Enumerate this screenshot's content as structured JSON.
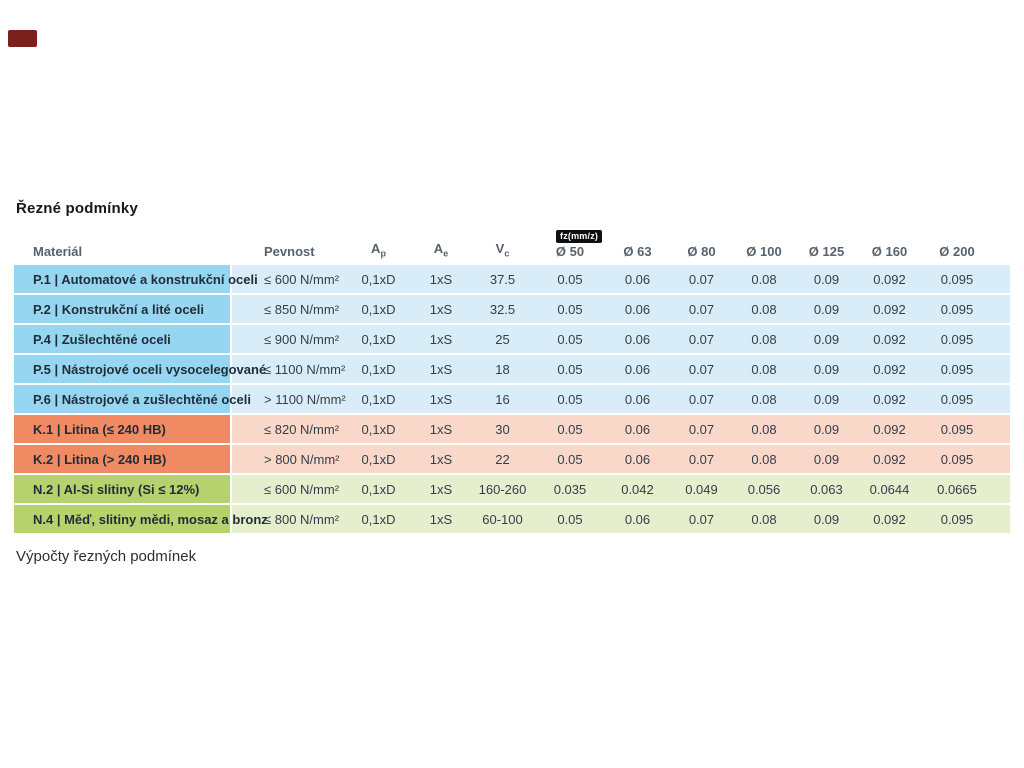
{
  "page": {
    "title": "Řezné podmínky",
    "section_footer": "Výpočty řezných podmínek"
  },
  "colors": {
    "group_p_dark": "#96d6f0",
    "group_p_light": "#d8edf8",
    "group_k_dark": "#f08a63",
    "group_k_light": "#fad8c9",
    "group_n_dark": "#b5d26d",
    "group_n_light": "#e5efcd",
    "badge_bg": "#0f0f10",
    "badge_text": "#ffffff",
    "recording_badge": "#7d1f1a"
  },
  "table": {
    "headers": {
      "material": "Materiál",
      "pevnost": "Pevnost",
      "ap": {
        "base": "A",
        "sub": "p"
      },
      "ae": {
        "base": "A",
        "sub": "e"
      },
      "vc": {
        "base": "V",
        "sub": "c"
      },
      "fz_unit_badge": "fz(mm/z)",
      "diameters": [
        "Ø 50",
        "Ø 63",
        "Ø 80",
        "Ø 100",
        "Ø 125",
        "Ø 160",
        "Ø 200"
      ]
    },
    "rows": [
      {
        "group": "P",
        "name": "P.1 | Automatové a konstrukční oceli",
        "pevnost": "≤ 600 N/mm²",
        "ap": "0,1xD",
        "ae": "1xS",
        "vc": "37.5",
        "fz": [
          "0.05",
          "0.06",
          "0.07",
          "0.08",
          "0.09",
          "0.092",
          "0.095"
        ]
      },
      {
        "group": "P",
        "name": "P.2 | Konstrukční a lité oceli",
        "pevnost": "≤ 850 N/mm²",
        "ap": "0,1xD",
        "ae": "1xS",
        "vc": "32.5",
        "fz": [
          "0.05",
          "0.06",
          "0.07",
          "0.08",
          "0.09",
          "0.092",
          "0.095"
        ]
      },
      {
        "group": "P",
        "name": "P.4 | Zušlechtěné oceli",
        "pevnost": "≤ 900 N/mm²",
        "ap": "0,1xD",
        "ae": "1xS",
        "vc": "25",
        "fz": [
          "0.05",
          "0.06",
          "0.07",
          "0.08",
          "0.09",
          "0.092",
          "0.095"
        ]
      },
      {
        "group": "P",
        "name": "P.5 | Nástrojové oceli vysocelegované",
        "pevnost": "≤ 1100 N/mm²",
        "ap": "0,1xD",
        "ae": "1xS",
        "vc": "18",
        "fz": [
          "0.05",
          "0.06",
          "0.07",
          "0.08",
          "0.09",
          "0.092",
          "0.095"
        ]
      },
      {
        "group": "P",
        "name": "P.6 | Nástrojové a zušlechtěné oceli",
        "pevnost": "> 1100 N/mm²",
        "ap": "0,1xD",
        "ae": "1xS",
        "vc": "16",
        "fz": [
          "0.05",
          "0.06",
          "0.07",
          "0.08",
          "0.09",
          "0.092",
          "0.095"
        ]
      },
      {
        "group": "K",
        "name": "K.1 | Litina (≤ 240 HB)",
        "pevnost": "≤ 820 N/mm²",
        "ap": "0,1xD",
        "ae": "1xS",
        "vc": "30",
        "fz": [
          "0.05",
          "0.06",
          "0.07",
          "0.08",
          "0.09",
          "0.092",
          "0.095"
        ]
      },
      {
        "group": "K",
        "name": "K.2 | Litina (> 240 HB)",
        "pevnost": "> 800 N/mm²",
        "ap": "0,1xD",
        "ae": "1xS",
        "vc": "22",
        "fz": [
          "0.05",
          "0.06",
          "0.07",
          "0.08",
          "0.09",
          "0.092",
          "0.095"
        ]
      },
      {
        "group": "N",
        "name": "N.2 | Al-Si slitiny (Si ≤ 12%)",
        "pevnost": "≤ 600 N/mm²",
        "ap": "0,1xD",
        "ae": "1xS",
        "vc": "160-260",
        "fz": [
          "0.035",
          "0.042",
          "0.049",
          "0.056",
          "0.063",
          "0.0644",
          "0.0665"
        ]
      },
      {
        "group": "N",
        "name": "N.4 | Měď, slitiny mědi, mosaz a bronz",
        "pevnost": "≤ 800 N/mm²",
        "ap": "0,1xD",
        "ae": "1xS",
        "vc": "60-100",
        "fz": [
          "0.05",
          "0.06",
          "0.07",
          "0.08",
          "0.09",
          "0.092",
          "0.095"
        ]
      }
    ]
  }
}
